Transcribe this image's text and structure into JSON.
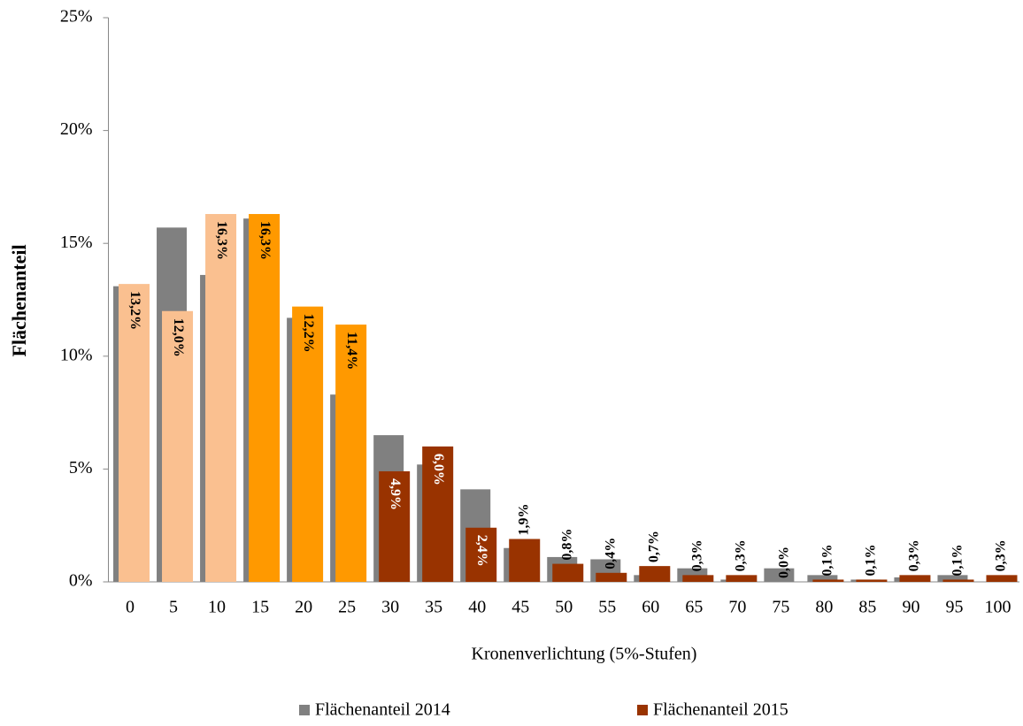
{
  "chart_data": {
    "type": "bar",
    "x_label": "Kronenverlichtung (5%-Stufen)",
    "y_label": "Flächenanteil",
    "categories": [
      "0",
      "5",
      "10",
      "15",
      "20",
      "25",
      "30",
      "35",
      "40",
      "45",
      "50",
      "55",
      "60",
      "65",
      "70",
      "75",
      "80",
      "85",
      "90",
      "95",
      "100"
    ],
    "series": [
      {
        "name": "Flächenanteil 2014",
        "color": "#808080",
        "values": [
          13.1,
          15.7,
          13.6,
          16.1,
          11.7,
          8.3,
          6.5,
          5.2,
          4.1,
          1.5,
          1.1,
          1.0,
          0.3,
          0.6,
          0.1,
          0.6,
          0.3,
          0.1,
          0.2,
          0.3,
          0.0
        ]
      },
      {
        "name": "Flächenanteil 2015",
        "color": "#993300",
        "colors": [
          "#fac090",
          "#fac090",
          "#fac090",
          "#ff9900",
          "#ff9900",
          "#ff9900",
          "#993300",
          "#993300",
          "#993300",
          "#993300",
          "#993300",
          "#993300",
          "#993300",
          "#993300",
          "#993300",
          "#993300",
          "#993300",
          "#993300",
          "#993300",
          "#993300",
          "#993300"
        ],
        "values": [
          13.2,
          12.0,
          16.3,
          16.3,
          12.2,
          11.4,
          4.9,
          6.0,
          2.4,
          1.9,
          0.8,
          0.4,
          0.7,
          0.3,
          0.3,
          0.0,
          0.1,
          0.1,
          0.3,
          0.1,
          0.3
        ],
        "value_labels": [
          "13,2%",
          "12,0%",
          "16,3%",
          "16,3%",
          "12,2%",
          "11,4%",
          "4,9%",
          "6,0%",
          "2,4%",
          "1,9%",
          "0,8%",
          "0,4%",
          "0,7%",
          "0,3%",
          "0,3%",
          "0,0%",
          "0,1%",
          "0,1%",
          "0,3%",
          "0,1%",
          "0,3%"
        ]
      }
    ],
    "ylim": [
      0,
      25
    ],
    "yticks": [
      {
        "value": 0,
        "label": "0%"
      },
      {
        "value": 5,
        "label": "5%"
      },
      {
        "value": 10,
        "label": "10%"
      },
      {
        "value": 15,
        "label": "15%"
      },
      {
        "value": 20,
        "label": "20%"
      },
      {
        "value": 25,
        "label": "25%"
      }
    ],
    "legend": "bottom"
  }
}
